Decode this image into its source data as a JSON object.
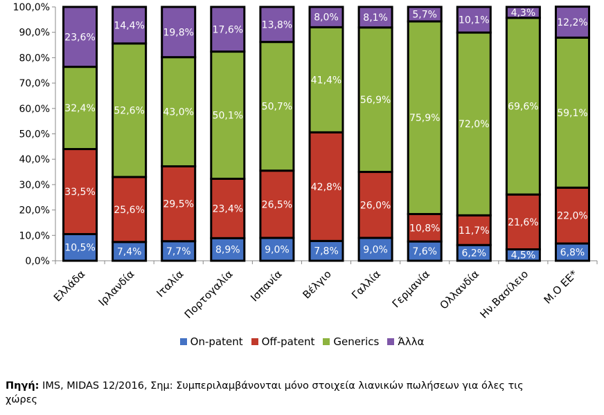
{
  "chart_data": {
    "type": "bar",
    "stacked": true,
    "percent": true,
    "categories": [
      "Ελλάδα",
      "Ιρλανδία",
      "Ιταλία",
      "Πορτογαλία",
      "Ισπανία",
      "Βέλγιο",
      "Γαλλία",
      "Γερμανία",
      "Ολλανδία",
      "Ην.Βασίλειο",
      "Μ.Ο ΕΕ*"
    ],
    "series": [
      {
        "name": "On-patent",
        "color": "#4472c4",
        "values": [
          10.5,
          7.4,
          7.7,
          8.9,
          9.0,
          7.8,
          9.0,
          7.6,
          6.2,
          4.5,
          6.8
        ],
        "labels": [
          "10,5%",
          "7,4%",
          "7,7%",
          "8,9%",
          "9,0%",
          "7,8%",
          "9,0%",
          "7,6%",
          "6,2%",
          "4,5%",
          "6,8%"
        ]
      },
      {
        "name": "Off-patent",
        "color": "#c0392b",
        "values": [
          33.5,
          25.6,
          29.5,
          23.4,
          26.5,
          42.8,
          26.0,
          10.8,
          11.7,
          21.6,
          22.0
        ],
        "labels": [
          "33,5%",
          "25,6%",
          "29,5%",
          "23,4%",
          "26,5%",
          "42,8%",
          "26,0%",
          "10,8%",
          "11,7%",
          "21,6%",
          "22,0%"
        ]
      },
      {
        "name": "Generics",
        "color": "#8db33f",
        "values": [
          32.4,
          52.6,
          43.0,
          50.1,
          50.7,
          41.4,
          56.9,
          75.9,
          72.0,
          69.6,
          59.1
        ],
        "labels": [
          "32,4%",
          "52,6%",
          "43,0%",
          "50,1%",
          "50,7%",
          "41,4%",
          "56,9%",
          "75,9%",
          "72,0%",
          "69,6%",
          "59,1%"
        ]
      },
      {
        "name": "Άλλα",
        "color": "#7e57a8",
        "values": [
          23.6,
          14.4,
          19.8,
          17.6,
          13.8,
          8.0,
          8.1,
          5.7,
          10.1,
          4.3,
          12.2
        ],
        "labels": [
          "23,6%",
          "14,4%",
          "19,8%",
          "17,6%",
          "13,8%",
          "8,0%",
          "8,1%",
          "5,7%",
          "10,1%",
          "4,3%",
          "12,2%"
        ]
      }
    ],
    "yticks": [
      "0,0%",
      "10,0%",
      "20,0%",
      "30,0%",
      "40,0%",
      "50,0%",
      "60,0%",
      "70,0%",
      "80,0%",
      "90,0%",
      "100,0%"
    ],
    "ylim": [
      0,
      100
    ],
    "legend_position": "bottom",
    "grid": false
  },
  "source": {
    "label": "Πηγή:",
    "text": " IMS, MIDAS 12/2016, Σημ: Συμπεριλαμβάνονται μόνο στοιχεία λιανικών πωλήσεων για όλες τις χώρες"
  }
}
